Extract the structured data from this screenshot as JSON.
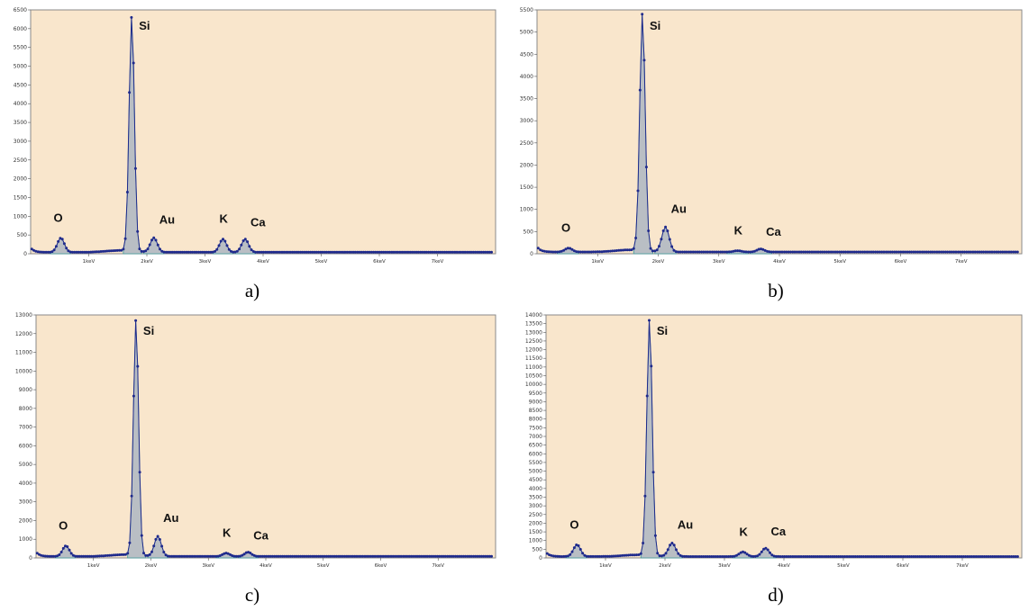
{
  "colors": {
    "plot_background": "#f9e6cc",
    "spectrum_fill": "#b9bec4",
    "spectrum_line": "#1f2a8c",
    "points": "#1f2a8c",
    "peak_outline": "#3a9a9a"
  },
  "chart_data": [
    {
      "type": "line",
      "caption": "a)",
      "xlabel": "",
      "ylabel": "",
      "xlim": [
        0,
        8
      ],
      "ylim": [
        0,
        6500
      ],
      "x_ticks": [
        1,
        2,
        3,
        4,
        5,
        6,
        7
      ],
      "x_tick_labels": [
        "1keV",
        "2keV",
        "3keV",
        "4keV",
        "5keV",
        "6keV",
        "7keV"
      ],
      "y_ticks": [
        0,
        500,
        1000,
        1500,
        2000,
        2500,
        3000,
        3500,
        4000,
        4500,
        5000,
        5500,
        6000,
        6500
      ],
      "background_counts": 40,
      "peaks": [
        {
          "label": "O",
          "energy_keV": 0.52,
          "counts": 420
        },
        {
          "label": "Si",
          "energy_keV": 1.74,
          "counts": 6300
        },
        {
          "label": "Au",
          "energy_keV": 2.12,
          "counts": 420
        },
        {
          "label": "K",
          "energy_keV": 3.31,
          "counts": 390
        },
        {
          "label": "Ca",
          "energy_keV": 3.69,
          "counts": 390
        }
      ]
    },
    {
      "type": "line",
      "caption": "b)",
      "xlabel": "",
      "ylabel": "",
      "xlim": [
        0,
        8
      ],
      "ylim": [
        0,
        5500
      ],
      "x_ticks": [
        1,
        2,
        3,
        4,
        5,
        6,
        7
      ],
      "x_tick_labels": [
        "1keV",
        "2keV",
        "3keV",
        "4keV",
        "5keV",
        "6keV",
        "7keV"
      ],
      "y_ticks": [
        0,
        500,
        1000,
        1500,
        2000,
        2500,
        3000,
        3500,
        4000,
        4500,
        5000,
        5500
      ],
      "background_counts": 40,
      "peaks": [
        {
          "label": "O",
          "energy_keV": 0.52,
          "counts": 130
        },
        {
          "label": "Si",
          "energy_keV": 1.74,
          "counts": 5400
        },
        {
          "label": "Au",
          "energy_keV": 2.12,
          "counts": 600
        },
        {
          "label": "K",
          "energy_keV": 3.31,
          "counts": 70
        },
        {
          "label": "Ca",
          "energy_keV": 3.69,
          "counts": 110
        }
      ]
    },
    {
      "type": "line",
      "caption": "c)",
      "xlabel": "",
      "ylabel": "",
      "xlim": [
        0,
        8
      ],
      "ylim": [
        0,
        13000
      ],
      "x_ticks": [
        1,
        2,
        3,
        4,
        5,
        6,
        7
      ],
      "x_tick_labels": [
        "1keV",
        "2keV",
        "3keV",
        "4keV",
        "5keV",
        "6keV",
        "7keV"
      ],
      "y_ticks": [
        0,
        1000,
        2000,
        3000,
        4000,
        5000,
        6000,
        7000,
        8000,
        9000,
        10000,
        11000,
        12000,
        13000
      ],
      "background_counts": 80,
      "peaks": [
        {
          "label": "O",
          "energy_keV": 0.52,
          "counts": 650
        },
        {
          "label": "Si",
          "energy_keV": 1.74,
          "counts": 12700
        },
        {
          "label": "Au",
          "energy_keV": 2.12,
          "counts": 1150
        },
        {
          "label": "K",
          "energy_keV": 3.31,
          "counts": 260
        },
        {
          "label": "Ca",
          "energy_keV": 3.69,
          "counts": 310
        }
      ]
    },
    {
      "type": "line",
      "caption": "d)",
      "xlabel": "",
      "ylabel": "",
      "xlim": [
        0,
        8
      ],
      "ylim": [
        0,
        14000
      ],
      "x_ticks": [
        1,
        2,
        3,
        4,
        5,
        6,
        7
      ],
      "x_tick_labels": [
        "1keV",
        "2keV",
        "3keV",
        "4keV",
        "5keV",
        "6keV",
        "7keV"
      ],
      "y_ticks": [
        0,
        500,
        1000,
        1500,
        2000,
        2500,
        3000,
        3500,
        4000,
        4500,
        5000,
        5500,
        6000,
        6500,
        7000,
        7500,
        8000,
        8500,
        9000,
        9500,
        10000,
        10500,
        11000,
        11500,
        12000,
        12500,
        13000,
        13500,
        14000
      ],
      "background_counts": 80,
      "peaks": [
        {
          "label": "O",
          "energy_keV": 0.52,
          "counts": 760
        },
        {
          "label": "Si",
          "energy_keV": 1.74,
          "counts": 13700
        },
        {
          "label": "Au",
          "energy_keV": 2.12,
          "counts": 850
        },
        {
          "label": "K",
          "energy_keV": 3.31,
          "counts": 350
        },
        {
          "label": "Ca",
          "energy_keV": 3.69,
          "counts": 560
        }
      ]
    }
  ]
}
